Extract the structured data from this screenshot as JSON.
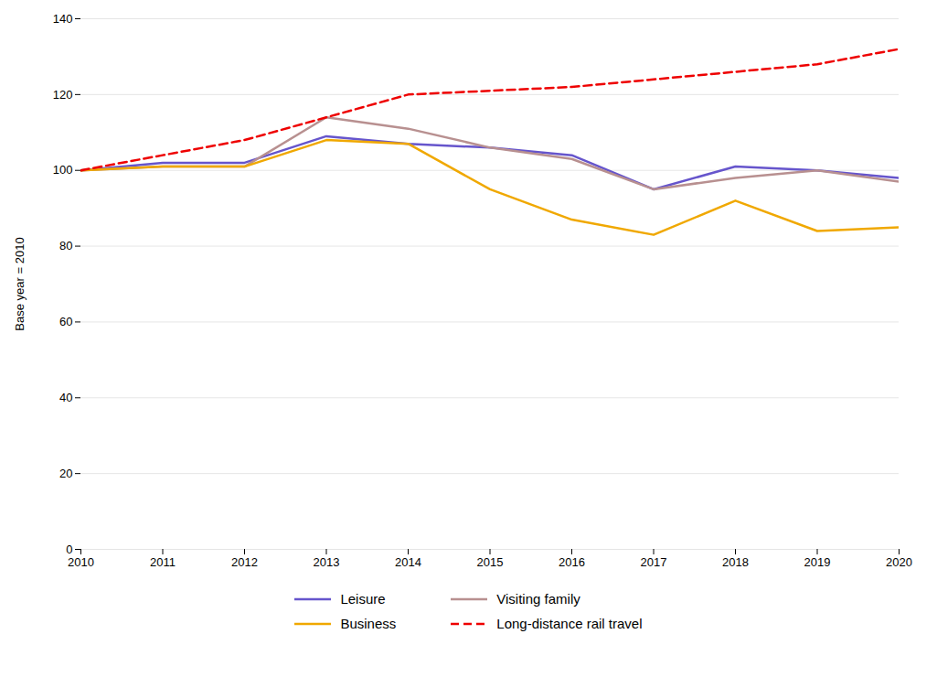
{
  "chart_data": {
    "type": "line",
    "ylabel": "Base year = 2010",
    "x": [
      2010,
      2011,
      2012,
      2013,
      2014,
      2015,
      2016,
      2017,
      2018,
      2019,
      2020
    ],
    "series": [
      {
        "name": "Leisure",
        "color": "#6655cc",
        "line_style": "solid",
        "values": [
          100,
          102,
          102,
          109,
          107,
          106,
          104,
          95,
          101,
          100,
          98
        ]
      },
      {
        "name": "Visiting family",
        "color": "#b89090",
        "line_style": "solid",
        "values": [
          100,
          101,
          101,
          114,
          111,
          106,
          103,
          95,
          98,
          100,
          97
        ]
      },
      {
        "name": "Business",
        "color": "#f0a800",
        "line_style": "solid",
        "values": [
          100,
          101,
          101,
          108,
          107,
          95,
          87,
          83,
          92,
          84,
          85
        ]
      },
      {
        "name": "Long-distance rail travel",
        "color": "#ee0000",
        "line_style": "dashed",
        "values": [
          100,
          104,
          108,
          114,
          120,
          121,
          122,
          124,
          126,
          128,
          132
        ]
      }
    ],
    "xlim": [
      2010,
      2020
    ],
    "xticks": [
      2010,
      2011,
      2012,
      2013,
      2014,
      2015,
      2016,
      2017,
      2018,
      2019,
      2020
    ],
    "ylim": [
      0,
      140
    ],
    "yticks": [
      0,
      20,
      40,
      60,
      80,
      100,
      120,
      140
    ],
    "grid": true,
    "legend": "bottom"
  }
}
